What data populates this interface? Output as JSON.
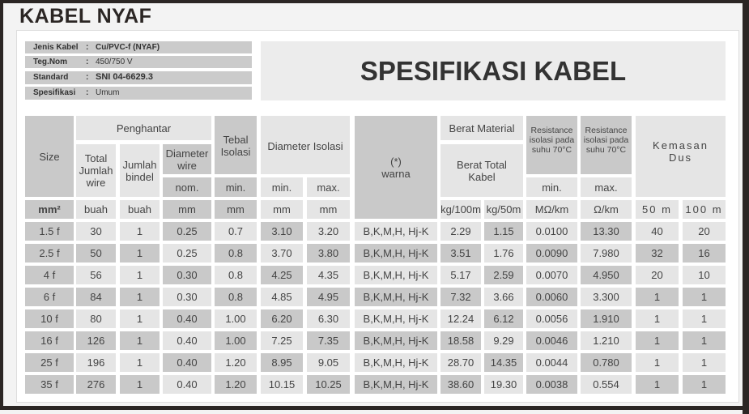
{
  "brand": "KABEL NYAF",
  "title": "SPESIFIKASI KABEL",
  "info": [
    {
      "key": "Jenis Kabel",
      "value": "Cu/PVC-f (NYAF)"
    },
    {
      "key": "Teg.Nom",
      "value": "450/750 V"
    },
    {
      "key": "Standard",
      "value": "SNI 04-6629.3"
    },
    {
      "key": "Spesifikasi",
      "value": "Umum"
    }
  ],
  "separator": ":",
  "header": {
    "size": "Size",
    "penghantar": "Penghantar",
    "total_jumlah_wire": "Total Jumlah wire",
    "jumlah_bindel": "Jumlah bindel",
    "diameter_wire": "Diameter wire",
    "nom": "nom.",
    "tebal_isolasi": "Tebal Isolasi",
    "min": "min.",
    "diameter_isolasi": "Diameter Isolasi",
    "max": "max.",
    "warna": "(*) warna",
    "berat_material": "Berat Material",
    "berat_total_kabel": "Berat Total Kabel",
    "resistance_min": "Resistance isolasi pada suhu 70°C",
    "resistance_max": "Resistance isolasi pada suhu 70°C",
    "kemasan_dus": "Kemasan Dus"
  },
  "units": [
    "mm²",
    "buah",
    "buah",
    "mm",
    "mm",
    "mm",
    "mm",
    "kg/100m",
    "kg/50m",
    "MΩ/km",
    "Ω/km",
    "50 m",
    "100 m"
  ],
  "rows": [
    [
      "1.5 f",
      "30",
      "1",
      "0.25",
      "0.7",
      "3.10",
      "3.20",
      "B,K,M,H, Hj-K",
      "2.29",
      "1.15",
      "0.0100",
      "13.30",
      "40",
      "20"
    ],
    [
      "2.5 f",
      "50",
      "1",
      "0.25",
      "0.8",
      "3.70",
      "3.80",
      "B,K,M,H, Hj-K",
      "3.51",
      "1.76",
      "0.0090",
      "7.980",
      "32",
      "16"
    ],
    [
      "4 f",
      "56",
      "1",
      "0.30",
      "0.8",
      "4.25",
      "4.35",
      "B,K,M,H, Hj-K",
      "5.17",
      "2.59",
      "0.0070",
      "4.950",
      "20",
      "10"
    ],
    [
      "6 f",
      "84",
      "1",
      "0.30",
      "0.8",
      "4.85",
      "4.95",
      "B,K,M,H, Hj-K",
      "7.32",
      "3.66",
      "0.0060",
      "3.300",
      "1",
      "1"
    ],
    [
      "10 f",
      "80",
      "1",
      "0.40",
      "1.00",
      "6.20",
      "6.30",
      "B,K,M,H, Hj-K",
      "12.24",
      "6.12",
      "0.0056",
      "1.910",
      "1",
      "1"
    ],
    [
      "16 f",
      "126",
      "1",
      "0.40",
      "1.00",
      "7.25",
      "7.35",
      "B,K,M,H, Hj-K",
      "18.58",
      "9.29",
      "0.0046",
      "1.210",
      "1",
      "1"
    ],
    [
      "25 f",
      "196",
      "1",
      "0.40",
      "1.20",
      "8.95",
      "9.05",
      "B,K,M,H, Hj-K",
      "28.70",
      "14.35",
      "0.0044",
      "0.780",
      "1",
      "1"
    ],
    [
      "35 f",
      "276",
      "1",
      "0.40",
      "1.20",
      "10.15",
      "10.25",
      "B,K,M,H, Hj-K",
      "38.60",
      "19.30",
      "0.0038",
      "0.554",
      "1",
      "1"
    ]
  ]
}
